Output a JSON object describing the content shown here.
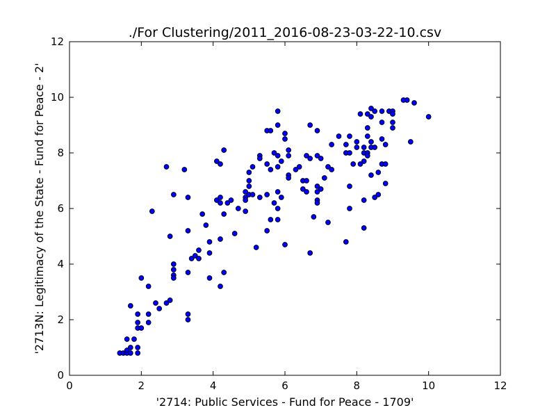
{
  "chart_data": {
    "type": "scatter",
    "title": "./For Clustering/2011_2016-08-23-03-22-10.csv",
    "xlabel": "'2714: Public Services - Fund for Peace - 1709'",
    "ylabel": "'2713N: Legitimacy of the State - Fund for Peace - 2'",
    "xlim": [
      0,
      12
    ],
    "ylim": [
      0,
      12
    ],
    "xticks": [
      "0",
      "2",
      "4",
      "6",
      "8",
      "10",
      "12"
    ],
    "yticks": [
      "0",
      "2",
      "4",
      "6",
      "8",
      "10",
      "12"
    ],
    "grid": false,
    "marker_color": "#0000ff",
    "marker_edge": "#000000",
    "points": [
      [
        1.4,
        0.8
      ],
      [
        1.5,
        0.8
      ],
      [
        1.6,
        0.8
      ],
      [
        1.6,
        0.9
      ],
      [
        1.7,
        0.8
      ],
      [
        1.6,
        1.3
      ],
      [
        1.7,
        1.0
      ],
      [
        1.8,
        1.3
      ],
      [
        1.9,
        1.0
      ],
      [
        1.9,
        0.8
      ],
      [
        1.9,
        1.7
      ],
      [
        1.9,
        1.9
      ],
      [
        2.0,
        1.7
      ],
      [
        1.9,
        2.2
      ],
      [
        1.7,
        2.5
      ],
      [
        2.0,
        3.5
      ],
      [
        2.2,
        1.9
      ],
      [
        2.2,
        2.2
      ],
      [
        2.2,
        3.2
      ],
      [
        2.3,
        5.9
      ],
      [
        2.4,
        2.6
      ],
      [
        2.5,
        2.4
      ],
      [
        2.7,
        2.6
      ],
      [
        2.8,
        2.7
      ],
      [
        2.8,
        5.0
      ],
      [
        2.7,
        7.5
      ],
      [
        2.9,
        6.5
      ],
      [
        2.9,
        4.0
      ],
      [
        2.9,
        3.8
      ],
      [
        2.9,
        3.6
      ],
      [
        2.9,
        3.5
      ],
      [
        3.2,
        7.4
      ],
      [
        3.3,
        6.4
      ],
      [
        3.3,
        5.2
      ],
      [
        3.3,
        3.7
      ],
      [
        3.3,
        2.2
      ],
      [
        3.3,
        2.0
      ],
      [
        3.4,
        4.2
      ],
      [
        3.5,
        4.3
      ],
      [
        3.6,
        4.2
      ],
      [
        3.6,
        4.5
      ],
      [
        3.7,
        5.8
      ],
      [
        3.8,
        5.4
      ],
      [
        3.9,
        4.8
      ],
      [
        3.9,
        4.4
      ],
      [
        3.9,
        3.5
      ],
      [
        4.1,
        7.7
      ],
      [
        4.1,
        6.3
      ],
      [
        4.2,
        7.6
      ],
      [
        4.2,
        6.4
      ],
      [
        4.2,
        6.2
      ],
      [
        4.2,
        4.9
      ],
      [
        4.2,
        3.2
      ],
      [
        4.3,
        8.1
      ],
      [
        4.3,
        5.8
      ],
      [
        4.3,
        3.7
      ],
      [
        4.4,
        6.2
      ],
      [
        4.5,
        6.3
      ],
      [
        4.6,
        5.1
      ],
      [
        4.7,
        6.0
      ],
      [
        4.9,
        6.6
      ],
      [
        4.9,
        6.4
      ],
      [
        4.9,
        6.3
      ],
      [
        4.9,
        5.9
      ],
      [
        5.0,
        7.3
      ],
      [
        5.0,
        7.0
      ],
      [
        5.0,
        6.8
      ],
      [
        5.0,
        6.5
      ],
      [
        5.1,
        7.5
      ],
      [
        5.1,
        6.5
      ],
      [
        5.2,
        4.6
      ],
      [
        5.3,
        7.9
      ],
      [
        5.3,
        7.8
      ],
      [
        5.3,
        6.4
      ],
      [
        5.5,
        8.8
      ],
      [
        5.5,
        7.6
      ],
      [
        5.5,
        6.5
      ],
      [
        5.5,
        5.2
      ],
      [
        5.6,
        8.8
      ],
      [
        5.6,
        7.4
      ],
      [
        5.6,
        5.6
      ],
      [
        5.7,
        8.0
      ],
      [
        5.7,
        6.2
      ],
      [
        5.8,
        9.5
      ],
      [
        5.8,
        9.0
      ],
      [
        5.8,
        7.9
      ],
      [
        5.8,
        7.5
      ],
      [
        5.8,
        6.6
      ],
      [
        5.8,
        6.0
      ],
      [
        5.8,
        5.6
      ],
      [
        5.9,
        7.7
      ],
      [
        5.9,
        6.4
      ],
      [
        6.0,
        8.7
      ],
      [
        6.0,
        8.5
      ],
      [
        6.0,
        4.7
      ],
      [
        6.1,
        8.1
      ],
      [
        6.1,
        7.9
      ],
      [
        6.1,
        7.2
      ],
      [
        6.1,
        7.1
      ],
      [
        6.3,
        7.4
      ],
      [
        6.4,
        7.5
      ],
      [
        6.5,
        7.0
      ],
      [
        6.5,
        6.7
      ],
      [
        6.6,
        7.9
      ],
      [
        6.6,
        7.0
      ],
      [
        6.6,
        6.6
      ],
      [
        6.7,
        9.0
      ],
      [
        6.7,
        7.8
      ],
      [
        6.7,
        4.4
      ],
      [
        6.8,
        5.7
      ],
      [
        6.9,
        8.8
      ],
      [
        6.9,
        7.9
      ],
      [
        6.9,
        6.8
      ],
      [
        6.9,
        6.6
      ],
      [
        6.9,
        6.3
      ],
      [
        6.9,
        6.2
      ],
      [
        7.0,
        7.8
      ],
      [
        7.0,
        6.7
      ],
      [
        7.1,
        7.1
      ],
      [
        7.2,
        7.5
      ],
      [
        7.2,
        5.5
      ],
      [
        7.3,
        8.3
      ],
      [
        7.3,
        7.4
      ],
      [
        7.5,
        8.6
      ],
      [
        7.7,
        8.3
      ],
      [
        7.7,
        8.0
      ],
      [
        7.7,
        4.8
      ],
      [
        7.8,
        8.6
      ],
      [
        7.8,
        8.0
      ],
      [
        7.8,
        6.8
      ],
      [
        7.8,
        6.0
      ],
      [
        7.9,
        7.6
      ],
      [
        8.0,
        8.4
      ],
      [
        8.0,
        8.2
      ],
      [
        8.1,
        9.4
      ],
      [
        8.1,
        7.6
      ],
      [
        8.2,
        8.2
      ],
      [
        8.2,
        8.0
      ],
      [
        8.2,
        7.7
      ],
      [
        8.2,
        6.3
      ],
      [
        8.2,
        5.3
      ],
      [
        8.3,
        9.4
      ],
      [
        8.3,
        8.9
      ],
      [
        8.3,
        8.6
      ],
      [
        8.3,
        8.0
      ],
      [
        8.3,
        7.9
      ],
      [
        8.4,
        9.6
      ],
      [
        8.4,
        9.3
      ],
      [
        8.4,
        8.4
      ],
      [
        8.4,
        8.2
      ],
      [
        8.4,
        7.2
      ],
      [
        8.5,
        9.5
      ],
      [
        8.5,
        8.2
      ],
      [
        8.5,
        6.4
      ],
      [
        8.6,
        7.3
      ],
      [
        8.6,
        6.5
      ],
      [
        8.7,
        9.5
      ],
      [
        8.7,
        9.1
      ],
      [
        8.7,
        8.5
      ],
      [
        8.7,
        7.6
      ],
      [
        8.8,
        8.3
      ],
      [
        8.8,
        7.6
      ],
      [
        8.8,
        6.9
      ],
      [
        8.9,
        9.5
      ],
      [
        9.0,
        9.5
      ],
      [
        9.0,
        9.4
      ],
      [
        9.0,
        9.1
      ],
      [
        9.0,
        8.9
      ],
      [
        9.3,
        9.9
      ],
      [
        9.4,
        9.9
      ],
      [
        9.5,
        8.4
      ],
      [
        9.6,
        9.8
      ],
      [
        10.0,
        9.3
      ]
    ]
  }
}
